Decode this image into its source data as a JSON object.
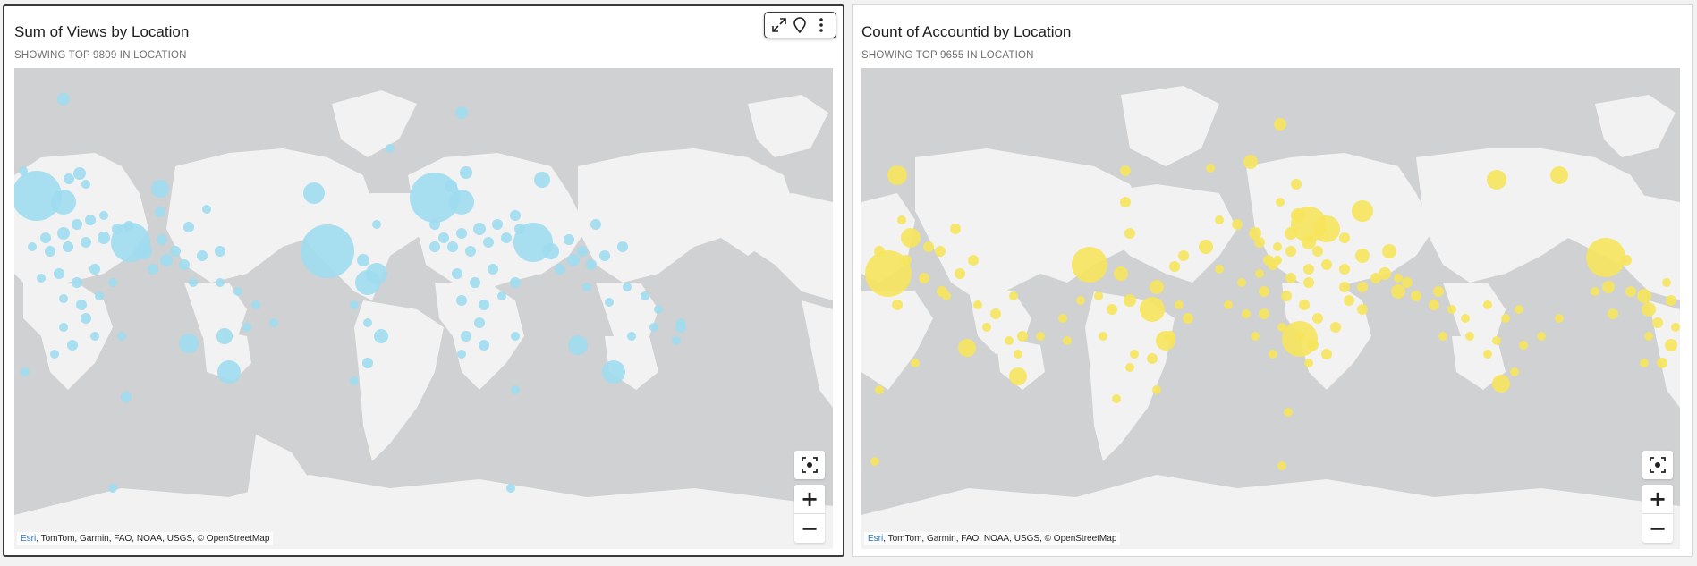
{
  "panels": [
    {
      "title": "Sum of Views by Location",
      "subtitle": "SHOWING TOP 9809 IN LOCATION",
      "selected": true,
      "bubble_color": "#9fdcef",
      "toolbar": {
        "icons": [
          "expand-icon",
          "pin-icon",
          "more-vertical-icon"
        ]
      },
      "attribution": {
        "esri": "Esri",
        "rest": ", TomTom, Garmin, FAO, NOAA, USGS, © OpenStreetMap"
      },
      "controls": {
        "recenter_icon": "recenter-icon",
        "zoom_in": "+",
        "zoom_out": "−"
      }
    },
    {
      "title": "Count of Accountid by Location",
      "subtitle": "SHOWING TOP 9655 IN LOCATION",
      "selected": false,
      "bubble_color": "#f6e45c",
      "attribution": {
        "esri": "Esri",
        "rest": ", TomTom, Garmin, FAO, NOAA, USGS, © OpenStreetMap"
      },
      "controls": {
        "recenter_icon": "recenter-icon",
        "zoom_in": "+",
        "zoom_out": "−"
      }
    }
  ],
  "colors": {
    "map_water": "#cfd1d2",
    "map_land": "#f2f2f2",
    "views_bubble": "#9fdcef",
    "accounts_bubble": "#f6e45c"
  }
}
